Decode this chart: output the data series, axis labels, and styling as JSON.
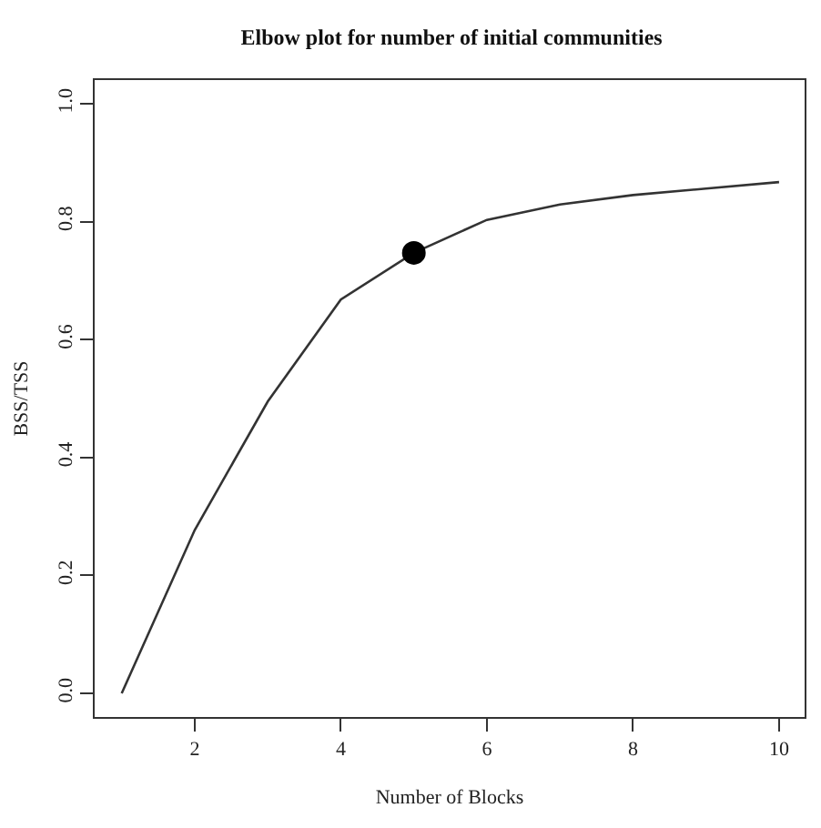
{
  "chart_data": {
    "type": "line",
    "title": "Elbow plot for number of initial communities",
    "xlabel": "Number of Blocks",
    "ylabel": "BSS/TSS",
    "series": [
      {
        "color": "#333333",
        "marker": "none",
        "x": [
          1,
          2,
          3,
          4,
          5,
          6,
          7,
          8,
          9,
          10
        ],
        "values": [
          0.0,
          0.277,
          0.495,
          0.668,
          0.747,
          0.803,
          0.829,
          0.845,
          0.856,
          0.867
        ]
      },
      {
        "type": "scatter",
        "color": "#000000",
        "marker": "circle",
        "x": [
          5
        ],
        "values": [
          0.747
        ]
      }
    ],
    "xlim": [
      0.63,
      10.35
    ],
    "ylim": [
      -0.04,
      1.04
    ],
    "xticks": [
      2,
      4,
      6,
      8,
      10
    ],
    "yticks": [
      {
        "value": 0,
        "label": "0.0"
      },
      0.2,
      0.4,
      0.6,
      0.8,
      {
        "value": 1,
        "label": "1.0"
      }
    ]
  }
}
